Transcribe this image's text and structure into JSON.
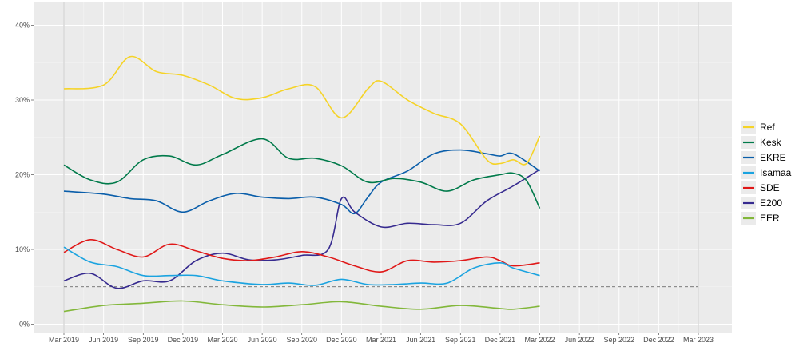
{
  "chart_data": {
    "type": "line",
    "title": "",
    "xlabel": "",
    "ylabel": "",
    "x_ticks": [
      "Mar 2019",
      "Jun 2019",
      "Sep 2019",
      "Dec 2019",
      "Mar 2020",
      "Jun 2020",
      "Sep 2020",
      "Dec 2020",
      "Mar 2021",
      "Jun 2021",
      "Sep 2021",
      "Dec 2021",
      "Mar 2022",
      "Jun 2022",
      "Sep 2022",
      "Dec 2022",
      "Mar 2023"
    ],
    "y_ticks": [
      "0%",
      "10%",
      "20%",
      "30%",
      "40%"
    ],
    "ylim": [
      0,
      40
    ],
    "xlim": [
      "Mar 2019",
      "Mar 2023"
    ],
    "threshold": 5,
    "grid": true,
    "legend_position": "right",
    "series": [
      {
        "name": "Ref",
        "color": "#f5d327",
        "x": [
          "2019-03",
          "2019-06",
          "2019-08",
          "2019-10",
          "2019-12",
          "2020-02",
          "2020-04",
          "2020-06",
          "2020-08",
          "2020-10",
          "2020-12",
          "2021-02",
          "2021-03",
          "2021-05",
          "2021-07",
          "2021-09",
          "2021-11",
          "2021-12",
          "2022-01",
          "2022-02",
          "2022-03"
        ],
        "values": [
          31.5,
          32,
          35.8,
          33.8,
          33.3,
          32,
          30.2,
          30.3,
          31.5,
          31.8,
          27.6,
          31.5,
          32.5,
          30,
          28.2,
          26.8,
          22,
          21.5,
          22,
          21.5,
          25.2
        ]
      },
      {
        "name": "Kesk",
        "color": "#007a4a",
        "x": [
          "2019-03",
          "2019-05",
          "2019-07",
          "2019-09",
          "2019-11",
          "2020-01",
          "2020-03",
          "2020-06",
          "2020-08",
          "2020-10",
          "2020-12",
          "2021-02",
          "2021-04",
          "2021-06",
          "2021-08",
          "2021-10",
          "2021-12",
          "2022-01",
          "2022-02",
          "2022-03"
        ],
        "values": [
          21.3,
          19.3,
          19,
          22,
          22.5,
          21.3,
          22.7,
          24.8,
          22.2,
          22.2,
          21.2,
          19,
          19.5,
          19,
          17.8,
          19.3,
          20,
          20.2,
          19.2,
          15.5
        ]
      },
      {
        "name": "EKRE",
        "color": "#0a5eaa",
        "x": [
          "2019-03",
          "2019-06",
          "2019-08",
          "2019-10",
          "2019-12",
          "2020-02",
          "2020-04",
          "2020-06",
          "2020-08",
          "2020-10",
          "2020-12",
          "2021-01",
          "2021-02",
          "2021-03",
          "2021-05",
          "2021-07",
          "2021-09",
          "2021-11",
          "2021-12",
          "2022-01",
          "2022-03"
        ],
        "values": [
          17.8,
          17.4,
          16.8,
          16.5,
          15,
          16.5,
          17.5,
          17,
          16.8,
          17,
          16,
          14.8,
          17,
          19,
          20.5,
          22.8,
          23.3,
          22.8,
          22.5,
          22.8,
          20.5
        ]
      },
      {
        "name": "Isamaa",
        "color": "#1aa3e0",
        "x": [
          "2019-03",
          "2019-05",
          "2019-07",
          "2019-09",
          "2019-11",
          "2020-01",
          "2020-03",
          "2020-06",
          "2020-08",
          "2020-10",
          "2020-12",
          "2021-02",
          "2021-04",
          "2021-06",
          "2021-08",
          "2021-10",
          "2021-12",
          "2022-01",
          "2022-03"
        ],
        "values": [
          10.3,
          8.3,
          7.7,
          6.5,
          6.5,
          6.5,
          5.8,
          5.3,
          5.5,
          5.2,
          6,
          5.3,
          5.3,
          5.5,
          5.5,
          7.5,
          8.2,
          7.5,
          6.5
        ]
      },
      {
        "name": "SDE",
        "color": "#e01818",
        "x": [
          "2019-03",
          "2019-05",
          "2019-07",
          "2019-09",
          "2019-11",
          "2020-01",
          "2020-03",
          "2020-05",
          "2020-07",
          "2020-09",
          "2020-11",
          "2021-01",
          "2021-03",
          "2021-05",
          "2021-07",
          "2021-09",
          "2021-11",
          "2021-12",
          "2022-01",
          "2022-03"
        ],
        "values": [
          9.6,
          11.3,
          10,
          9,
          10.7,
          9.8,
          8.8,
          8.5,
          9,
          9.7,
          9,
          7.8,
          7,
          8.5,
          8.3,
          8.5,
          9,
          8.5,
          7.8,
          8.2
        ]
      },
      {
        "name": "E200",
        "color": "#362a8f",
        "x": [
          "2019-03",
          "2019-05",
          "2019-07",
          "2019-09",
          "2019-11",
          "2020-01",
          "2020-03",
          "2020-05",
          "2020-07",
          "2020-09",
          "2020-11",
          "2020-12",
          "2021-01",
          "2021-03",
          "2021-05",
          "2021-07",
          "2021-09",
          "2021-11",
          "2022-01",
          "2022-03"
        ],
        "values": [
          5.8,
          6.8,
          4.8,
          5.8,
          5.8,
          8.5,
          9.5,
          8.6,
          8.6,
          9.2,
          10,
          16.8,
          15,
          13,
          13.5,
          13.3,
          13.5,
          16.5,
          18.5,
          20.7
        ]
      },
      {
        "name": "EER",
        "color": "#82b73a",
        "x": [
          "2019-03",
          "2019-06",
          "2019-09",
          "2019-12",
          "2020-03",
          "2020-06",
          "2020-09",
          "2020-12",
          "2021-03",
          "2021-06",
          "2021-09",
          "2021-12",
          "2022-01",
          "2022-03"
        ],
        "values": [
          1.7,
          2.5,
          2.8,
          3.1,
          2.6,
          2.3,
          2.6,
          3,
          2.4,
          2,
          2.5,
          2.1,
          2,
          2.4
        ]
      }
    ]
  }
}
